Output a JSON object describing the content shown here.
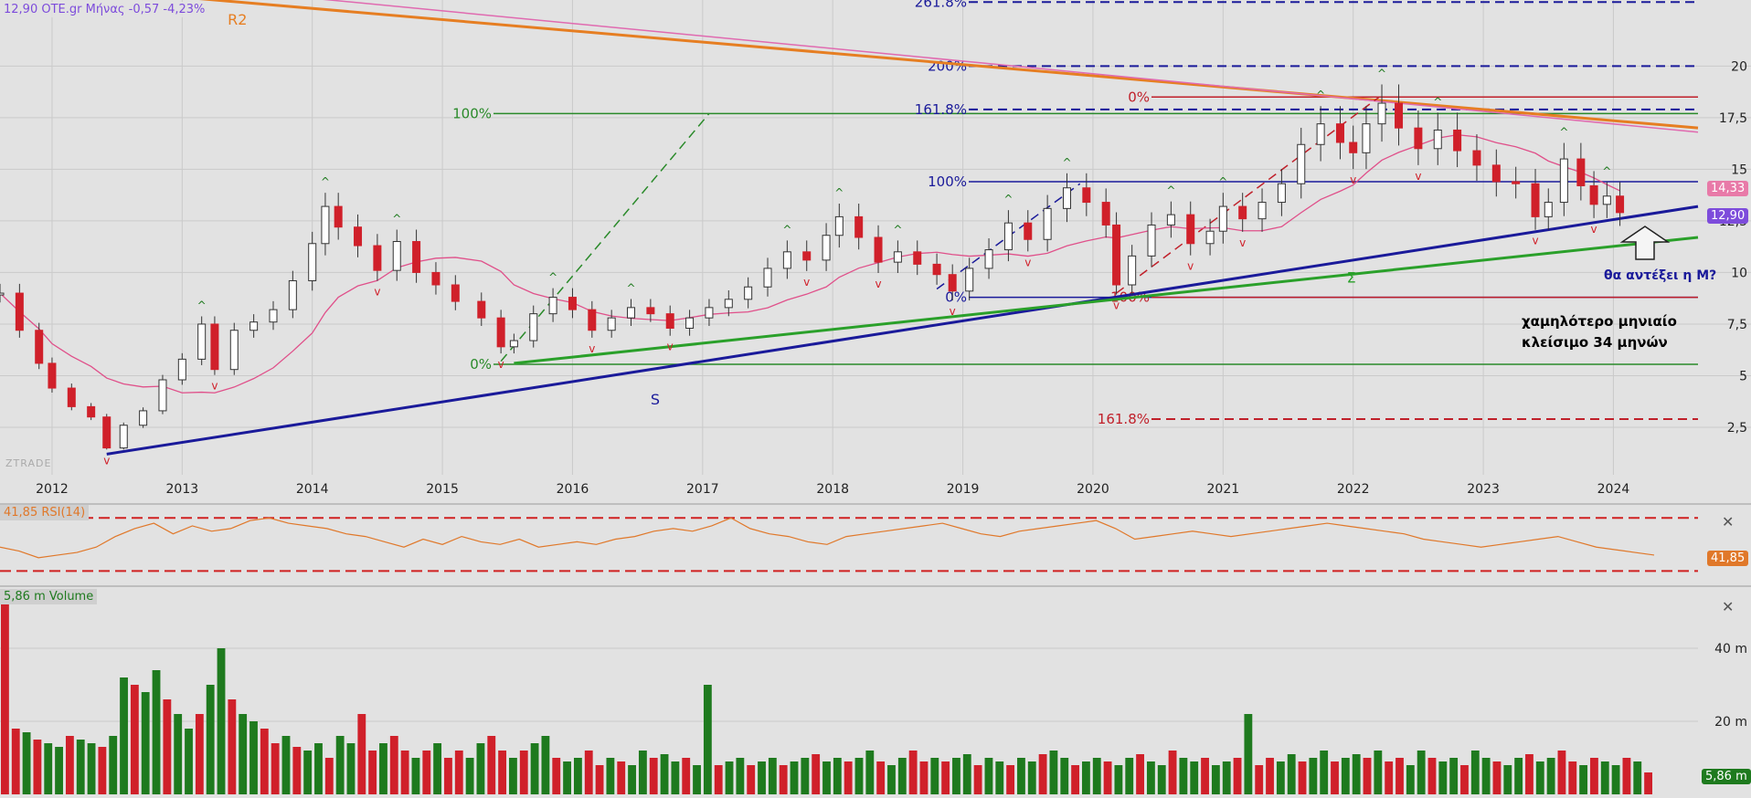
{
  "header": {
    "symbol_line": "12,90 OTE.gr Μήνας -0,57 -4,23%",
    "price_badge": "12,90",
    "ma_badge": "14,33",
    "watermark": "ZTRADE",
    "colors": {
      "up": "#ffffff",
      "down": "#d0202a",
      "ma": "#e0508a",
      "support": "#1a1a9a",
      "accent": "#7d4cdb"
    }
  },
  "chart_data": [
    {
      "type": "candlestick",
      "panel": "price",
      "x_unit": "year (fractional)",
      "xlim": [
        2011.6,
        2024.65
      ],
      "ylim": [
        0.2,
        23.2
      ],
      "x_ticks": [
        "2012",
        "2013",
        "2014",
        "2015",
        "2016",
        "2017",
        "2018",
        "2019",
        "2020",
        "2021",
        "2022",
        "2023",
        "2024"
      ],
      "y_ticks": [
        "2,5",
        "5",
        "7,5",
        "10",
        "12,5",
        "15",
        "17,5",
        "20"
      ],
      "grid": true,
      "ohlc_points": [
        [
          2011.6,
          9.0
        ],
        [
          2011.75,
          7.2
        ],
        [
          2011.9,
          5.6
        ],
        [
          2012.0,
          4.4
        ],
        [
          2012.15,
          3.5
        ],
        [
          2012.3,
          3.0
        ],
        [
          2012.42,
          1.5
        ],
        [
          2012.55,
          2.6
        ],
        [
          2012.7,
          3.3
        ],
        [
          2012.85,
          4.8
        ],
        [
          2013.0,
          5.8
        ],
        [
          2013.15,
          7.5
        ],
        [
          2013.25,
          5.3
        ],
        [
          2013.4,
          7.2
        ],
        [
          2013.55,
          7.6
        ],
        [
          2013.7,
          8.2
        ],
        [
          2013.85,
          9.6
        ],
        [
          2014.0,
          11.4
        ],
        [
          2014.1,
          13.2
        ],
        [
          2014.2,
          12.2
        ],
        [
          2014.35,
          11.3
        ],
        [
          2014.5,
          10.1
        ],
        [
          2014.65,
          11.5
        ],
        [
          2014.8,
          10.0
        ],
        [
          2014.95,
          9.4
        ],
        [
          2015.1,
          8.6
        ],
        [
          2015.3,
          7.8
        ],
        [
          2015.45,
          6.4
        ],
        [
          2015.55,
          6.7
        ],
        [
          2015.7,
          8.0
        ],
        [
          2015.85,
          8.8
        ],
        [
          2016.0,
          8.2
        ],
        [
          2016.15,
          7.2
        ],
        [
          2016.3,
          7.8
        ],
        [
          2016.45,
          8.3
        ],
        [
          2016.6,
          8.0
        ],
        [
          2016.75,
          7.3
        ],
        [
          2016.9,
          7.8
        ],
        [
          2017.05,
          8.3
        ],
        [
          2017.2,
          8.7
        ],
        [
          2017.35,
          9.3
        ],
        [
          2017.5,
          10.2
        ],
        [
          2017.65,
          11.0
        ],
        [
          2017.8,
          10.6
        ],
        [
          2017.95,
          11.8
        ],
        [
          2018.05,
          12.7
        ],
        [
          2018.2,
          11.7
        ],
        [
          2018.35,
          10.5
        ],
        [
          2018.5,
          11.0
        ],
        [
          2018.65,
          10.4
        ],
        [
          2018.8,
          9.9
        ],
        [
          2018.92,
          9.1
        ],
        [
          2019.05,
          10.2
        ],
        [
          2019.2,
          11.1
        ],
        [
          2019.35,
          12.4
        ],
        [
          2019.5,
          11.6
        ],
        [
          2019.65,
          13.1
        ],
        [
          2019.8,
          14.1
        ],
        [
          2019.95,
          13.4
        ],
        [
          2020.1,
          12.3
        ],
        [
          2020.18,
          9.4
        ],
        [
          2020.3,
          10.8
        ],
        [
          2020.45,
          12.3
        ],
        [
          2020.6,
          12.8
        ],
        [
          2020.75,
          11.4
        ],
        [
          2020.9,
          12.0
        ],
        [
          2021.0,
          13.2
        ],
        [
          2021.15,
          12.6
        ],
        [
          2021.3,
          13.4
        ],
        [
          2021.45,
          14.3
        ],
        [
          2021.6,
          16.2
        ],
        [
          2021.75,
          17.2
        ],
        [
          2021.9,
          16.3
        ],
        [
          2022.0,
          15.8
        ],
        [
          2022.1,
          17.2
        ],
        [
          2022.22,
          18.2
        ],
        [
          2022.35,
          17.0
        ],
        [
          2022.5,
          16.0
        ],
        [
          2022.65,
          16.9
        ],
        [
          2022.8,
          15.9
        ],
        [
          2022.95,
          15.2
        ],
        [
          2023.1,
          14.4
        ],
        [
          2023.25,
          14.3
        ],
        [
          2023.4,
          12.7
        ],
        [
          2023.5,
          13.4
        ],
        [
          2023.62,
          15.5
        ],
        [
          2023.75,
          14.2
        ],
        [
          2023.85,
          13.3
        ],
        [
          2023.95,
          13.7
        ],
        [
          2024.05,
          12.9
        ]
      ],
      "series": [
        {
          "name": "12,90 OTE.gr Μήνας",
          "last": "12,90"
        }
      ],
      "moving_average_last": "14,33",
      "fibonacci_sets": [
        {
          "color": "#2a8a2a",
          "labels": [
            "0%",
            "100%"
          ],
          "levels": [
            5.55,
            17.7
          ]
        },
        {
          "color": "#1a1a9a",
          "labels": [
            "0%",
            "100%",
            "161.8%",
            "200%",
            "261.8%"
          ],
          "levels": [
            8.8,
            14.4,
            17.9,
            20.0,
            23.1
          ]
        },
        {
          "color": "#c0202a",
          "labels": [
            "100%",
            "0%",
            "161.8%"
          ],
          "levels": [
            8.8,
            18.5,
            2.9
          ]
        }
      ],
      "trendlines": [
        {
          "label": "S",
          "color": "#1a1a9a",
          "x": [
            2012.42,
            2024.65
          ],
          "y": [
            1.2,
            13.2
          ]
        },
        {
          "label": "Σ",
          "color": "#2aa02a",
          "x": [
            2015.55,
            2024.65
          ],
          "y": [
            5.6,
            11.7
          ]
        },
        {
          "label": "R2",
          "color": "#e67e22",
          "x": [
            2012.7,
            2024.65
          ],
          "y": [
            23.5,
            17.0
          ]
        }
      ],
      "annotations": [
        "θα αντέξει η Μ?",
        "χαμηλότερο μηνιαίο",
        "κλείσιμο 34 μηνών"
      ]
    },
    {
      "type": "line",
      "panel": "rsi",
      "series": [
        {
          "name": "41,85 RSI(14)",
          "last": "41,85"
        }
      ],
      "ylim": [
        22,
        75
      ],
      "levels": [
        70,
        30
      ],
      "values": [
        48,
        45,
        40,
        42,
        44,
        48,
        56,
        62,
        66,
        58,
        64,
        60,
        62,
        68,
        70,
        66,
        64,
        62,
        58,
        56,
        52,
        48,
        54,
        50,
        56,
        52,
        50,
        54,
        48,
        50,
        52,
        50,
        54,
        56,
        60,
        62,
        60,
        64,
        70,
        62,
        58,
        56,
        52,
        50,
        56,
        58,
        60,
        62,
        64,
        66,
        62,
        58,
        56,
        60,
        62,
        64,
        66,
        68,
        62,
        54,
        56,
        58,
        60,
        58,
        56,
        58,
        60,
        62,
        64,
        66,
        64,
        62,
        60,
        58,
        54,
        52,
        50,
        48,
        50,
        52,
        54,
        56,
        52,
        48,
        46,
        44,
        42
      ]
    },
    {
      "type": "bar",
      "panel": "volume",
      "series": [
        {
          "name": "5,86 m Volume",
          "last": "5,86 m"
        }
      ],
      "y_ticks": [
        "20 m",
        "40 m"
      ],
      "ylim": [
        0,
        55
      ],
      "values": [
        52,
        18,
        17,
        15,
        14,
        13,
        16,
        15,
        14,
        13,
        16,
        32,
        30,
        28,
        34,
        26,
        22,
        18,
        22,
        30,
        40,
        26,
        22,
        20,
        18,
        14,
        16,
        13,
        12,
        14,
        10,
        16,
        14,
        22,
        12,
        14,
        16,
        12,
        10,
        12,
        14,
        10,
        12,
        10,
        14,
        16,
        12,
        10,
        12,
        14,
        16,
        10,
        9,
        10,
        12,
        8,
        10,
        9,
        8,
        12,
        10,
        11,
        9,
        10,
        8,
        30,
        8,
        9,
        10,
        8,
        9,
        10,
        8,
        9,
        10,
        11,
        9,
        10,
        9,
        10,
        12,
        9,
        8,
        10,
        12,
        9,
        10,
        9,
        10,
        11,
        8,
        10,
        9,
        8,
        10,
        9,
        11,
        12,
        10,
        8,
        9,
        10,
        9,
        8,
        10,
        11,
        9,
        8,
        12,
        10,
        9,
        10,
        8,
        9,
        10,
        22,
        8,
        10,
        9,
        11,
        9,
        10,
        12,
        9,
        10,
        11,
        10,
        12,
        9,
        10,
        8,
        12,
        10,
        9,
        10,
        8,
        12,
        10,
        9,
        8,
        10,
        11,
        9,
        10,
        12,
        9,
        8,
        10,
        9,
        8,
        10,
        9,
        6
      ],
      "colors": {
        "up": "#1e7a1e",
        "down": "#d0202a"
      }
    }
  ]
}
